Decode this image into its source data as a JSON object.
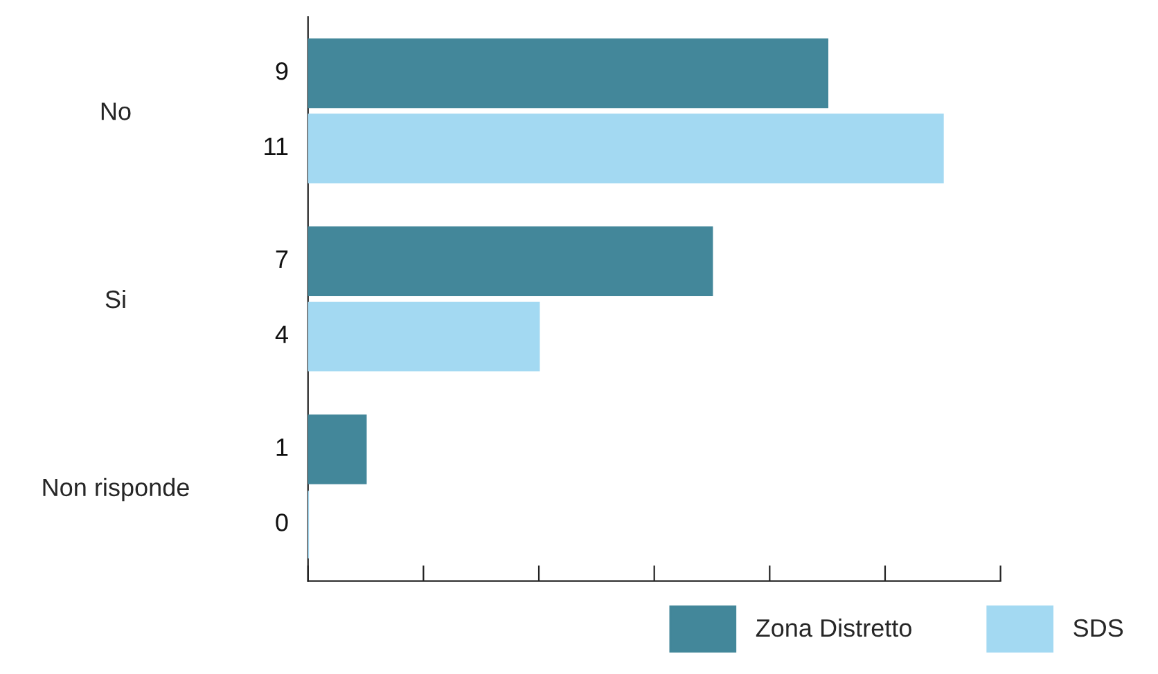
{
  "chart_data": {
    "type": "bar",
    "orientation": "horizontal",
    "categories": [
      "No",
      "Si",
      "Non risponde"
    ],
    "series": [
      {
        "name": "Zona Distretto",
        "color": "#43879a",
        "values": [
          9,
          7,
          1
        ]
      },
      {
        "name": "SDS",
        "color": "#a3d9f2",
        "values": [
          11,
          4,
          0
        ]
      }
    ],
    "xlim": [
      0,
      12
    ],
    "xticks": [
      {
        "value": 0,
        "label": null
      },
      {
        "value": 2,
        "label": null
      },
      {
        "value": 4,
        "label": null
      },
      {
        "value": 6,
        "label": null
      },
      {
        "value": 8,
        "label": null
      },
      {
        "value": 10,
        "label": null
      },
      {
        "value": 12,
        "label": null
      }
    ],
    "data_labels": true,
    "grid": false,
    "legend": "bottom right",
    "tick_labels": "y"
  }
}
